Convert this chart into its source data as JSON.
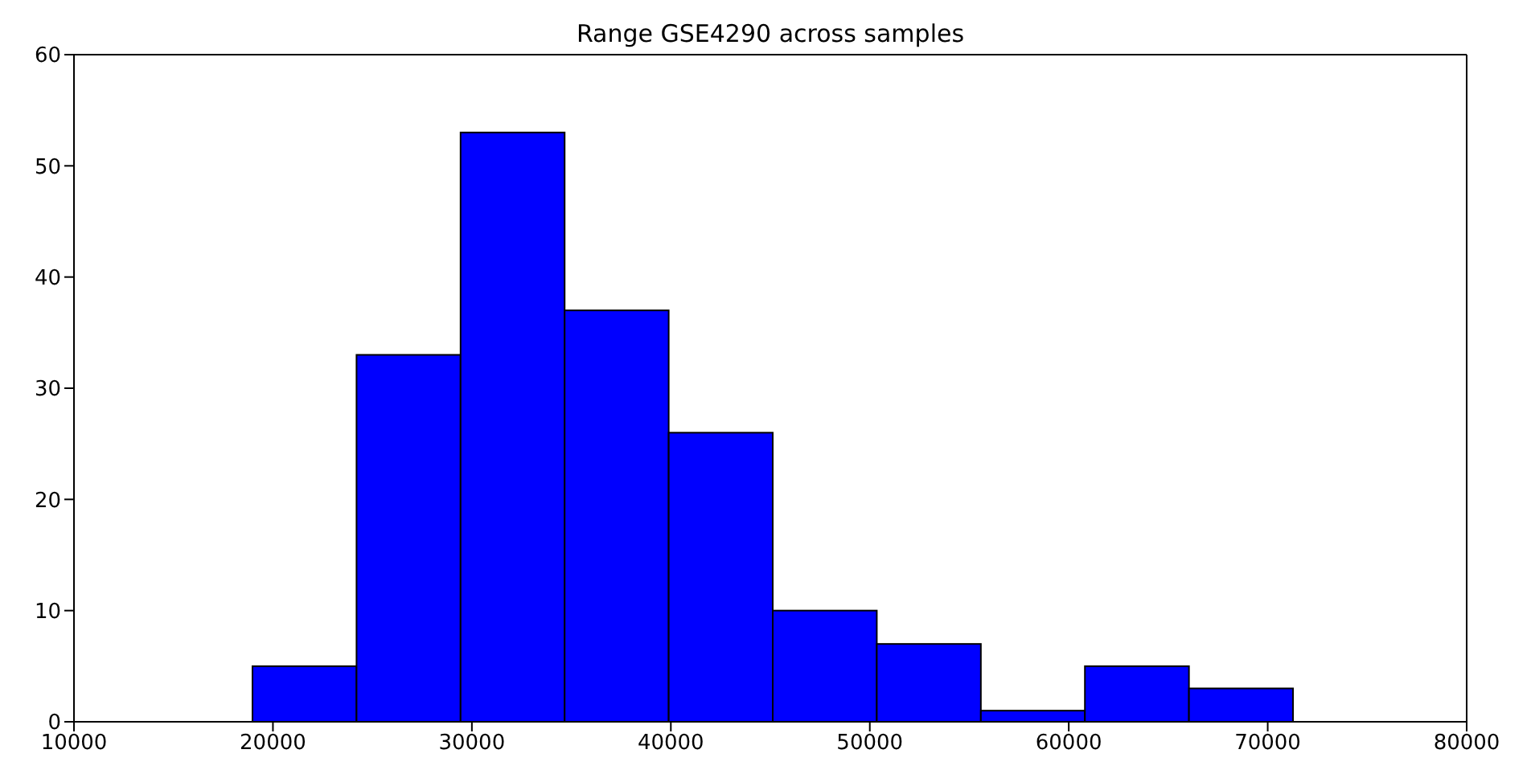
{
  "chart_data": {
    "type": "histogram",
    "title": "Range GSE4290 across samples",
    "bins": [
      19000,
      24230,
      29460,
      34690,
      39920,
      45150,
      50380,
      55610,
      60840,
      66070,
      71300
    ],
    "values": [
      5,
      33,
      53,
      37,
      26,
      10,
      7,
      1,
      5,
      3
    ],
    "color": "#0000ff",
    "xlim": [
      10000,
      80000
    ],
    "xticks": [
      10000,
      20000,
      30000,
      40000,
      50000,
      60000,
      70000,
      80000
    ],
    "ylim": [
      0,
      60
    ],
    "yticks": [
      0,
      10,
      20,
      30,
      40,
      50,
      60
    ],
    "grid": false
  }
}
